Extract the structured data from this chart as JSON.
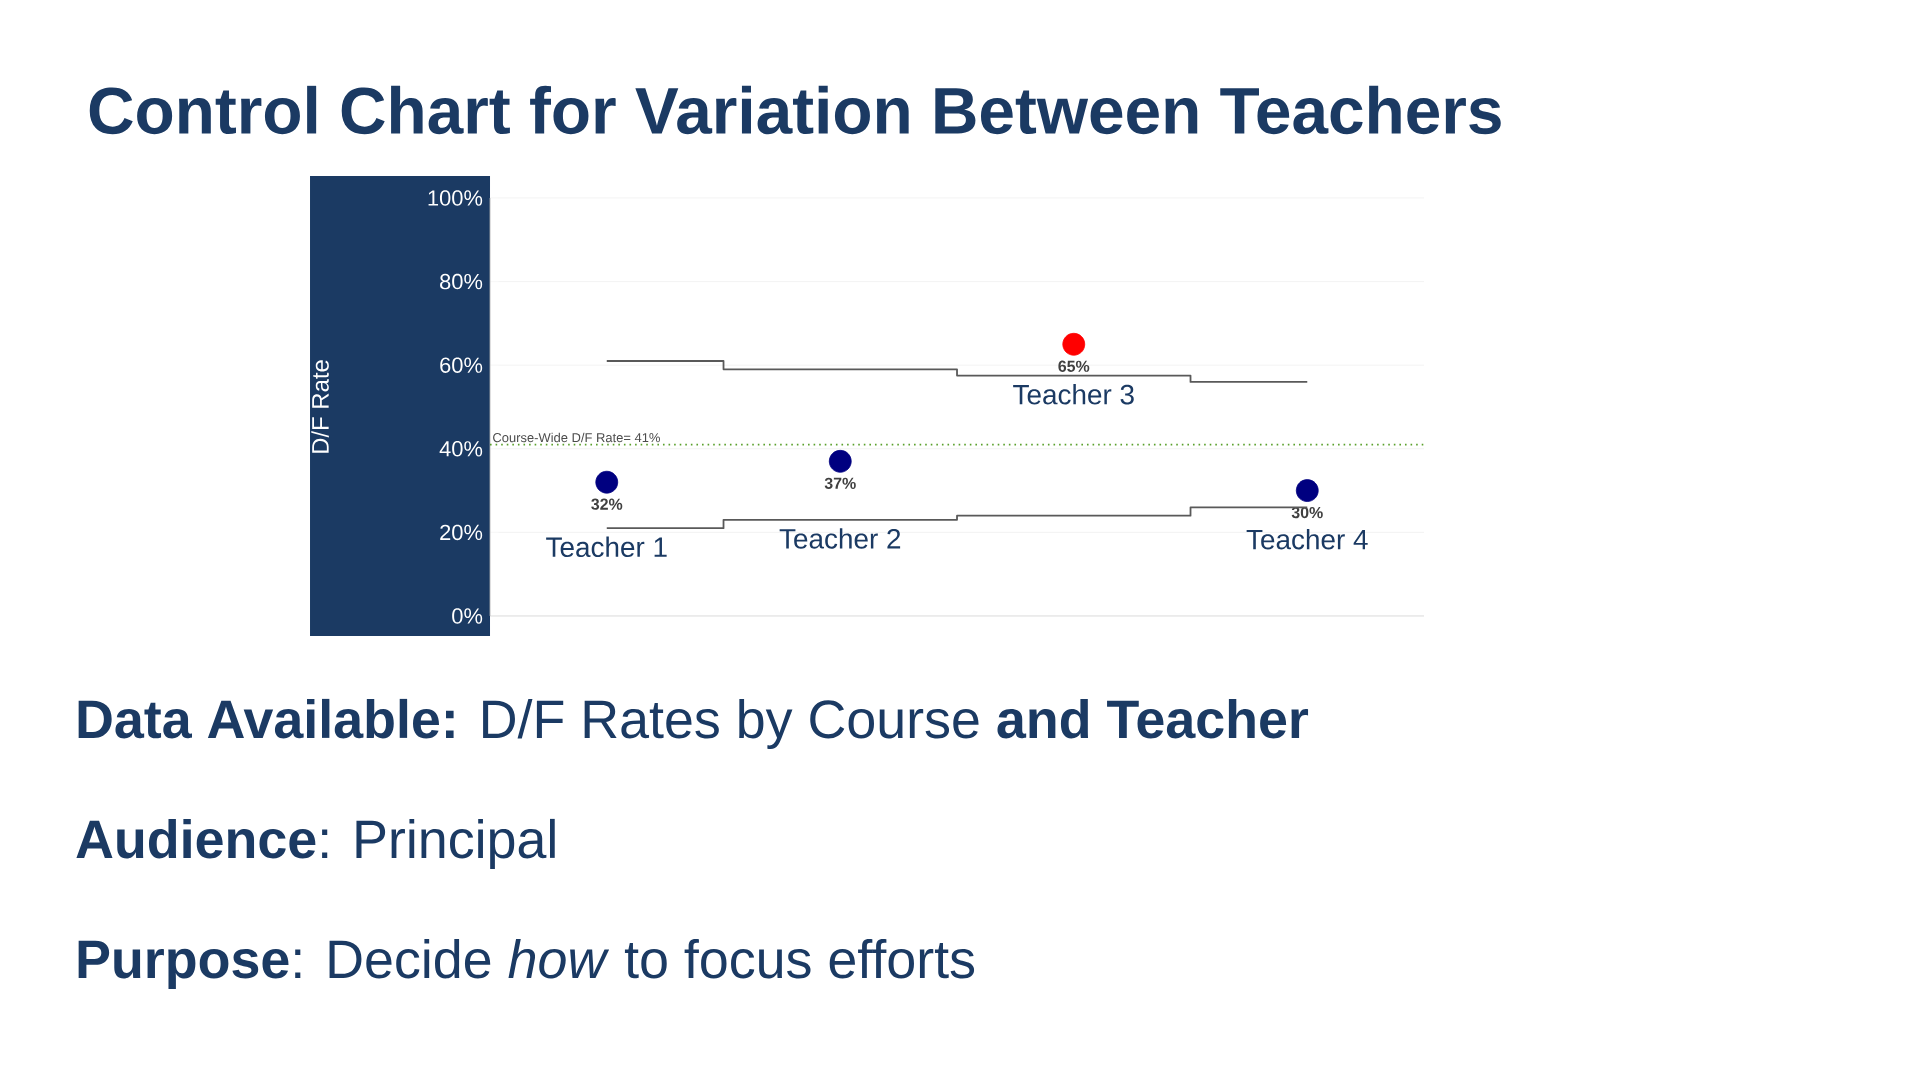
{
  "chart_data": {
    "type": "scatter",
    "title": "Control Chart for Variation Between Teachers",
    "ylabel": "D/F Rate",
    "categories": [
      "Teacher 1",
      "Teacher 2",
      "Teacher 3",
      "Teacher 4"
    ],
    "series": [
      {
        "marker": "circle",
        "values": [
          32,
          37,
          65,
          30
        ],
        "colors": [
          "#000080",
          "#000080",
          "#ff0000",
          "#000080"
        ],
        "value_labels": [
          "32%",
          "37%",
          "65%",
          "30%"
        ]
      },
      {
        "type": "step",
        "marker": "none",
        "color": "#595959",
        "values": [
          61,
          59,
          57.5,
          56
        ]
      },
      {
        "type": "step",
        "marker": "none",
        "color": "#595959",
        "values": [
          21,
          23,
          24,
          26
        ]
      }
    ],
    "ylim": [
      0,
      100
    ],
    "yticks": [
      {
        "value": 0,
        "label": "0%"
      },
      {
        "value": 20,
        "label": "20%"
      },
      {
        "value": 40,
        "label": "40%"
      },
      {
        "value": 60,
        "label": "60%"
      },
      {
        "value": 80,
        "label": "80%"
      },
      {
        "value": 100,
        "label": "100%"
      }
    ],
    "grid": "y",
    "tick_labels": "y",
    "ref_lines": [
      {
        "axis": "y",
        "value": 41,
        "label": "Course-Wide D/F Rate= 41%",
        "color": "#5aa02c",
        "line_style": "dotted"
      }
    ],
    "annotations": [
      "**Data Available:** D/F Rates by Course **and Teacher**",
      "**Audience**: Principal",
      "**Purpose**: Decide *how* to focus efforts"
    ]
  }
}
